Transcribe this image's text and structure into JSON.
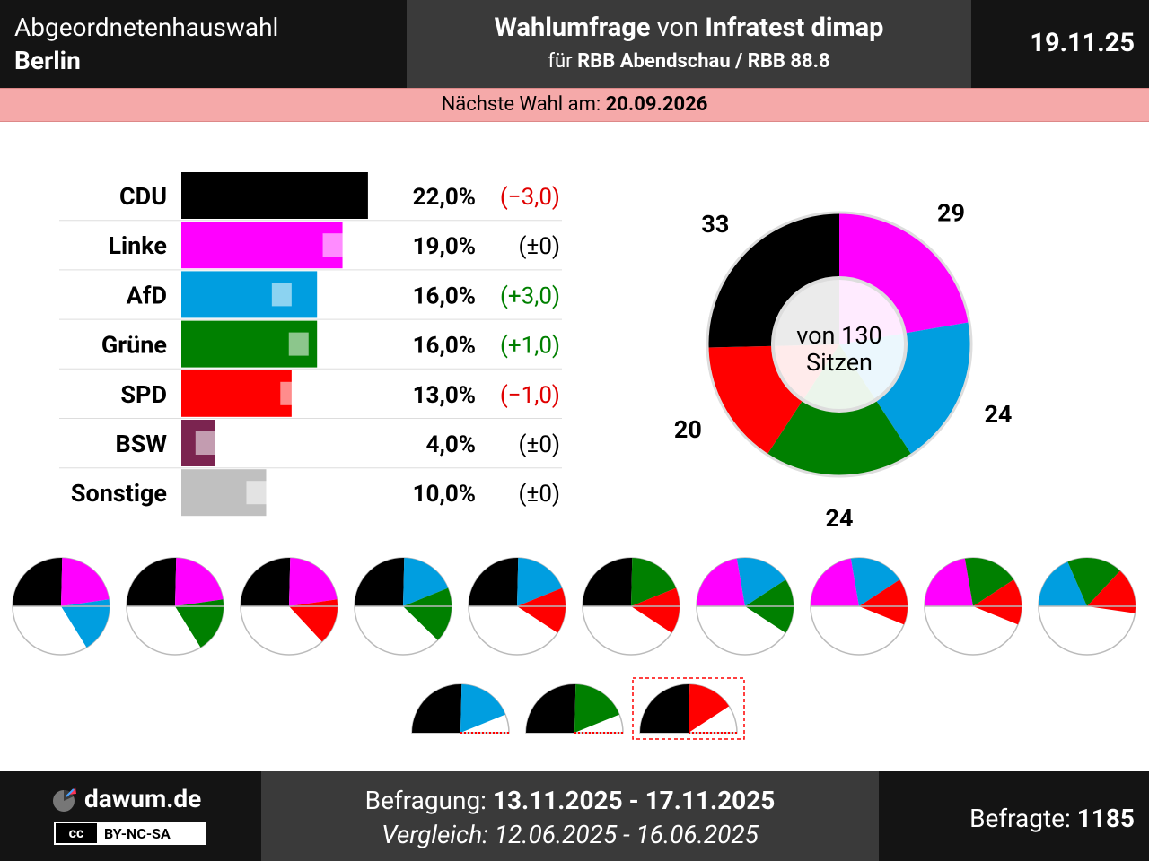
{
  "header": {
    "title_line1": "Abgeordnetenhauswahl",
    "title_line2": "Berlin",
    "poll_prefix": "Wahlumfrage",
    "poll_von": "von",
    "institute": "Infratest dimap",
    "for_prefix": "für",
    "client": "RBB Abendschau / RBB 88.8",
    "date": "19.11.25"
  },
  "next_election": {
    "label": "Nächste Wahl am:",
    "date": "20.09.2026"
  },
  "chart_data": [
    {
      "type": "bar",
      "categories": [
        "CDU",
        "Linke",
        "AfD",
        "Grüne",
        "SPD",
        "BSW",
        "Sonstige"
      ],
      "values": [
        22.0,
        19.0,
        16.0,
        16.0,
        13.0,
        4.0,
        10.0
      ],
      "previous_values": [
        25.0,
        19.0,
        13.0,
        15.0,
        14.0,
        4.0,
        10.0
      ],
      "value_labels": [
        "22,0%",
        "19,0%",
        "16,0%",
        "16,0%",
        "13,0%",
        "4,0%",
        "10,0%"
      ],
      "change_labels": [
        "(−3,0)",
        "(±0)",
        "(+3,0)",
        "(+1,0)",
        "(−1,0)",
        "(±0)",
        "(±0)"
      ],
      "change_direction": [
        "down",
        "none",
        "up",
        "up",
        "down",
        "none",
        "none"
      ],
      "colors": [
        "#000000",
        "#ff00ff",
        "#009ee0",
        "#008000",
        "#ff0000",
        "#7b2450",
        "#c0c0c0"
      ],
      "change_colors": {
        "up": "#008000",
        "down": "#e00000",
        "none": "#000000"
      }
    },
    {
      "type": "pie",
      "center_label": [
        "von 130",
        "Sitzen"
      ],
      "total": 130,
      "categories": [
        "CDU",
        "Linke",
        "AfD",
        "Grüne",
        "SPD"
      ],
      "values": [
        33,
        29,
        24,
        24,
        20
      ],
      "colors": [
        "#000000",
        "#ff00ff",
        "#009ee0",
        "#008000",
        "#ff0000"
      ]
    },
    {
      "type": "pie",
      "description_free": true,
      "coalitions": [
        [
          "CDU",
          "Linke",
          "AfD"
        ],
        [
          "CDU",
          "Linke",
          "Grüne"
        ],
        [
          "CDU",
          "Linke",
          "SPD"
        ],
        [
          "CDU",
          "AfD",
          "Grüne"
        ],
        [
          "CDU",
          "AfD",
          "SPD"
        ],
        [
          "CDU",
          "Grüne",
          "SPD"
        ],
        [
          "Linke",
          "AfD",
          "Grüne"
        ],
        [
          "Linke",
          "AfD",
          "SPD"
        ],
        [
          "Linke",
          "Grüne",
          "SPD"
        ],
        [
          "AfD",
          "Grüne",
          "SPD"
        ]
      ],
      "small_coalitions": [
        [
          "CDU",
          "AfD"
        ],
        [
          "CDU",
          "Grüne"
        ],
        [
          "CDU",
          "SPD"
        ]
      ],
      "current_government_index": 2
    }
  ],
  "footer": {
    "brand": "dawum.de",
    "license": "BY-NC-SA",
    "license_cc": "cc",
    "survey_label": "Befragung:",
    "survey_period": "13.11.2025 - 17.11.2025",
    "compare_label": "Vergleich:",
    "compare_period": "12.06.2025 - 16.06.2025",
    "respondents_label": "Befragte:",
    "respondents": "1185"
  }
}
